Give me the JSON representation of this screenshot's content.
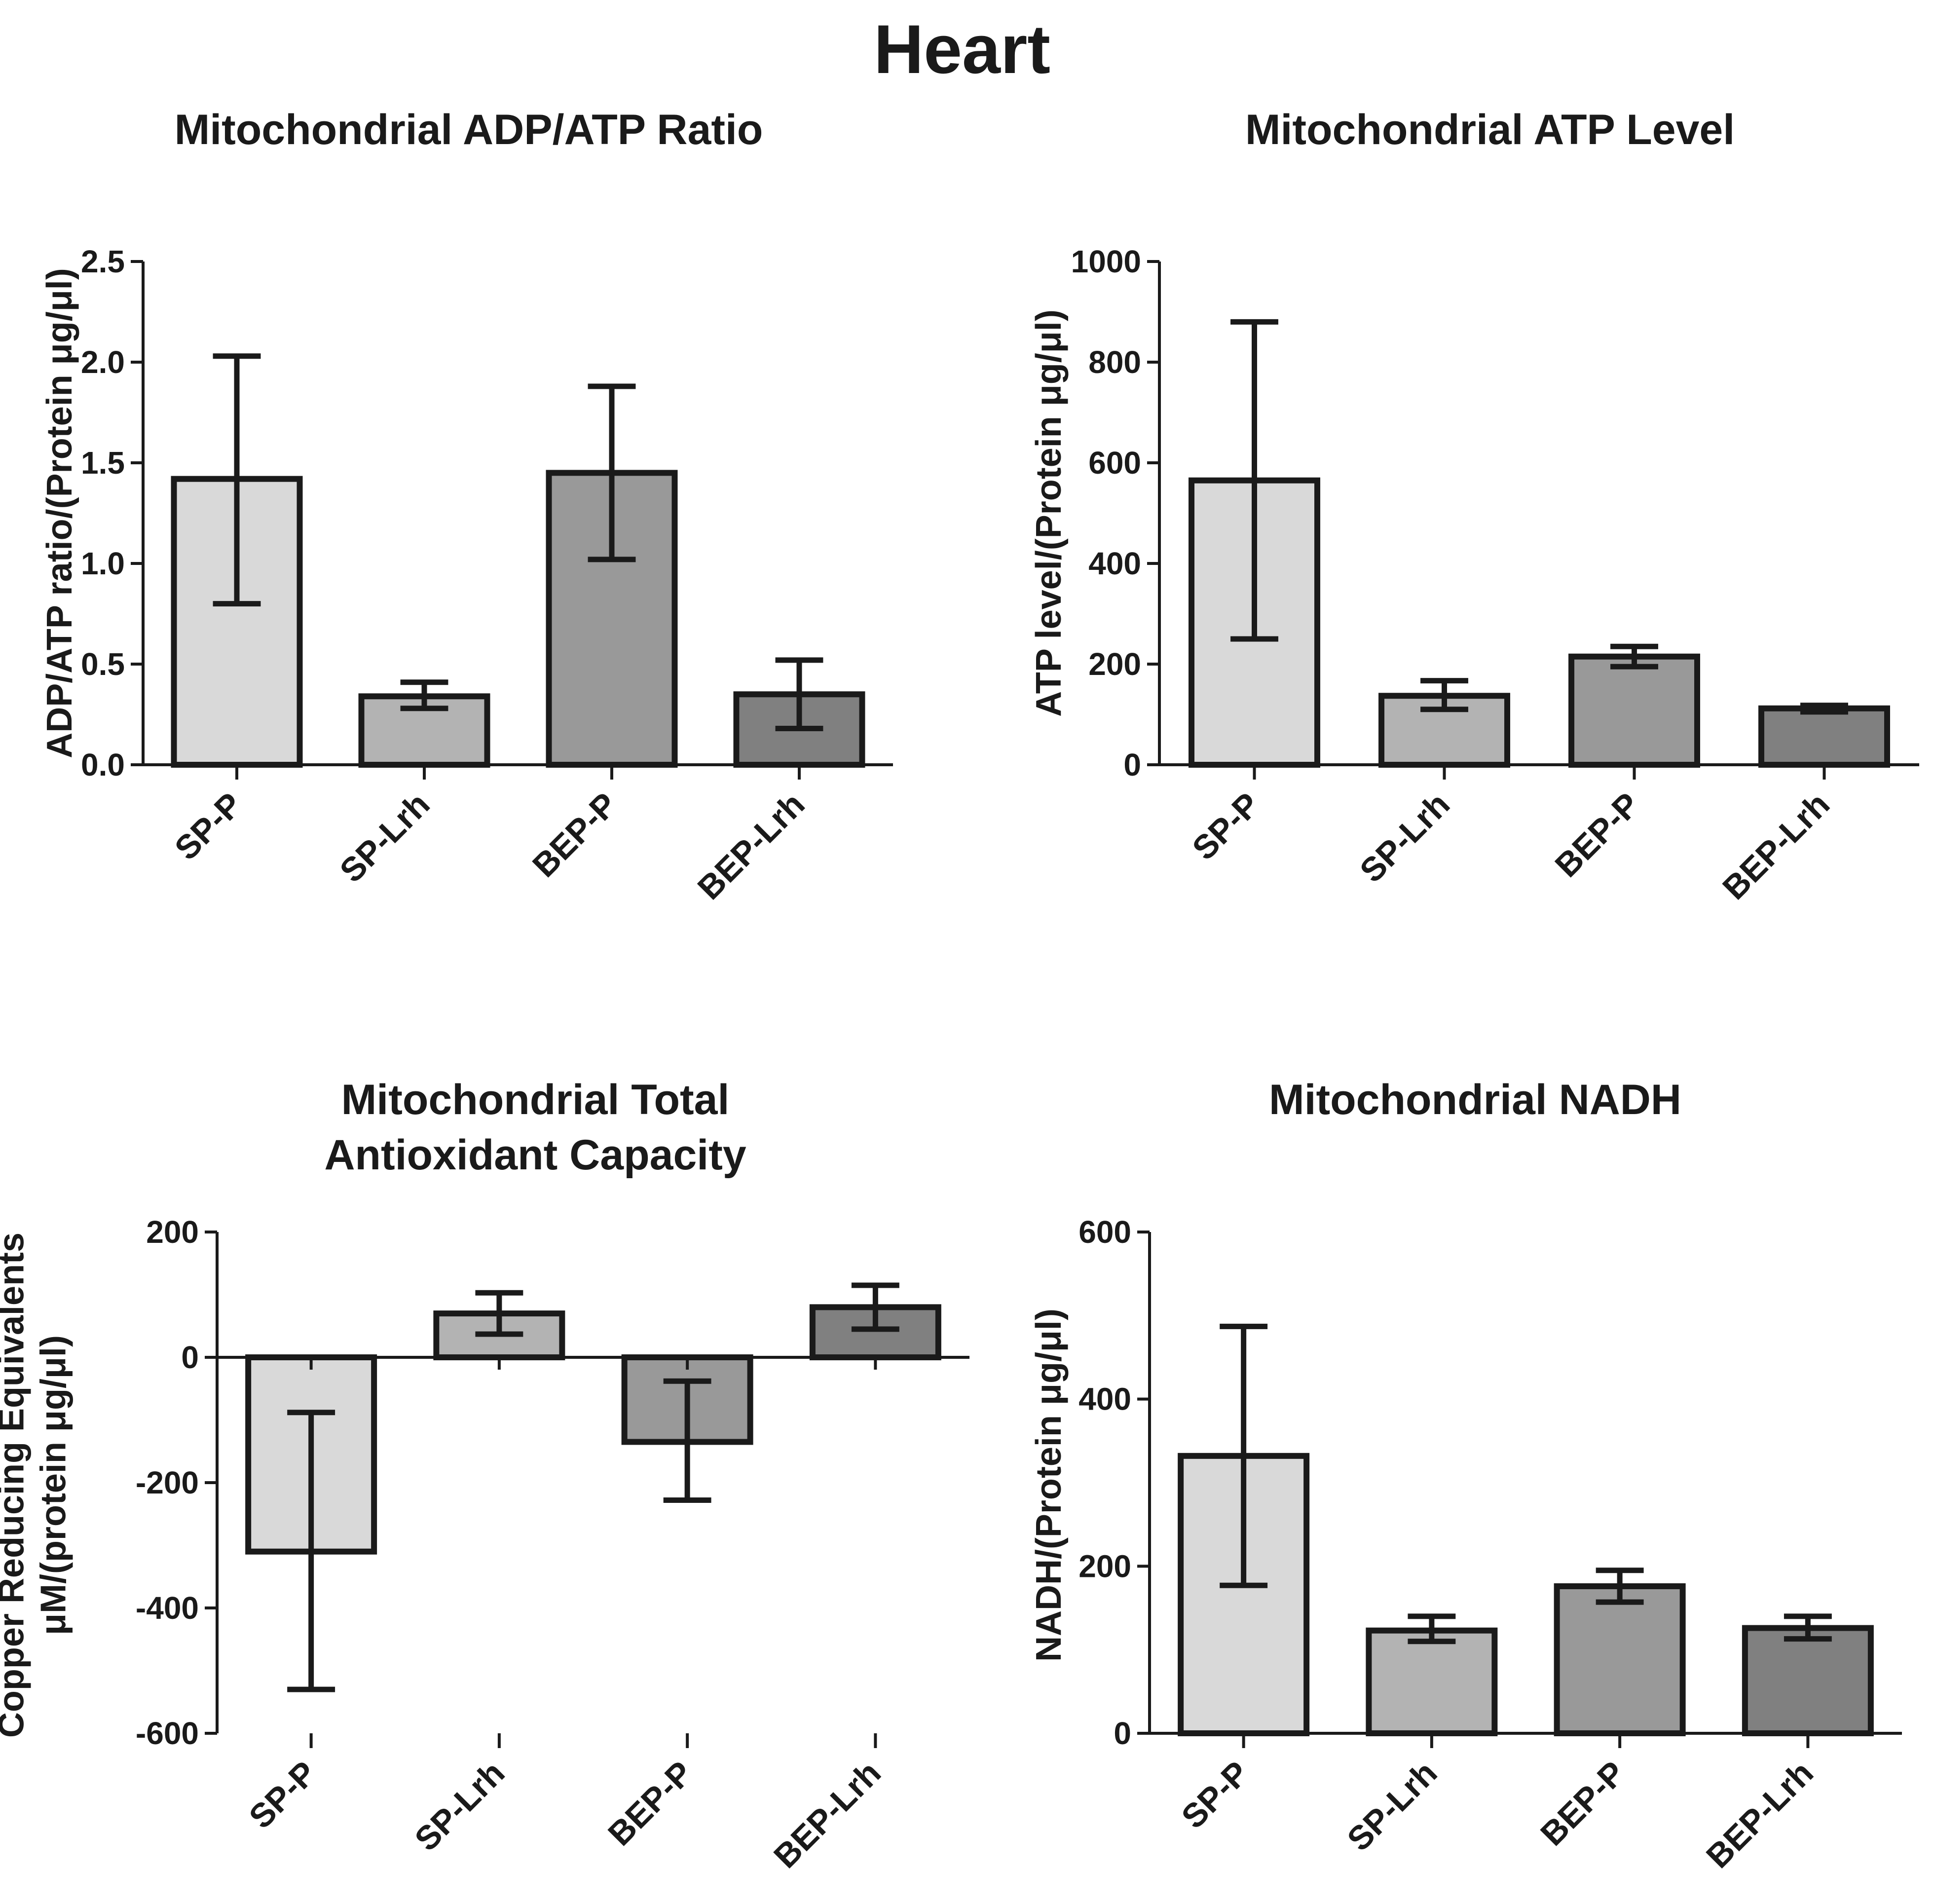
{
  "figure_title": "Heart",
  "chart_data": [
    {
      "type": "bar",
      "title": [
        "Mitochondrial ADP/ATP Ratio"
      ],
      "ylabel": [
        "ADP/ATP ratio/(Protein  μg/μl)"
      ],
      "categories": [
        "SP-P",
        "SP-Lrh",
        "BEP-P",
        "BEP-Lrh"
      ],
      "values": [
        1.42,
        0.34,
        1.45,
        0.35
      ],
      "error_low": [
        0.8,
        0.28,
        1.02,
        0.18
      ],
      "error_high": [
        2.03,
        0.41,
        1.88,
        0.52
      ],
      "colors": [
        "#d9d9d9",
        "#b3b3b3",
        "#999999",
        "#808080"
      ],
      "ylim": [
        0,
        2.5
      ],
      "yticks": [
        0,
        0.5,
        1.0,
        1.5,
        2.0,
        2.5
      ],
      "ytick_labels": [
        "0.0",
        "0.5",
        "1.0",
        "1.5",
        "2.0",
        "2.5"
      ]
    },
    {
      "type": "bar",
      "title": [
        "Mitochondrial ATP Level"
      ],
      "ylabel": [
        "ATP level/(Protein  μg/μl)"
      ],
      "categories": [
        "SP-P",
        "SP-Lrh",
        "BEP-P",
        "BEP-Lrh"
      ],
      "values": [
        565,
        137,
        215,
        112
      ],
      "error_low": [
        250,
        110,
        195,
        105
      ],
      "error_high": [
        880,
        167,
        235,
        118
      ],
      "colors": [
        "#d9d9d9",
        "#b3b3b3",
        "#999999",
        "#808080"
      ],
      "ylim": [
        0,
        1000
      ],
      "yticks": [
        0,
        200,
        400,
        600,
        800,
        1000
      ],
      "ytick_labels": [
        "0",
        "200",
        "400",
        "600",
        "800",
        "1000"
      ]
    },
    {
      "type": "bar",
      "title": [
        "Mitochondrial Total",
        "Antioxidant Capacity"
      ],
      "ylabel": [
        "Copper Reducing Equivalents",
        "μM/(protein  μg/μl)"
      ],
      "categories": [
        "SP-P",
        "SP-Lrh",
        "BEP-P",
        "BEP-Lrh"
      ],
      "values": [
        -310,
        70,
        -135,
        80
      ],
      "error_low": [
        -530,
        37,
        -228,
        45
      ],
      "error_high": [
        -88,
        103,
        -38,
        115
      ],
      "colors": [
        "#d9d9d9",
        "#b3b3b3",
        "#999999",
        "#808080"
      ],
      "ylim": [
        -600,
        200
      ],
      "yticks": [
        -600,
        -400,
        -200,
        0,
        200
      ],
      "ytick_labels": [
        "-600",
        "-400",
        "-200",
        "0",
        "200"
      ]
    },
    {
      "type": "bar",
      "title": [
        "Mitochondrial NADH"
      ],
      "ylabel": [
        "NADH/(Protein  μg/μl)"
      ],
      "categories": [
        "SP-P",
        "SP-Lrh",
        "BEP-P",
        "BEP-Lrh"
      ],
      "values": [
        332,
        123,
        176,
        126
      ],
      "error_low": [
        177,
        110,
        157,
        113
      ],
      "error_high": [
        487,
        140,
        195,
        140
      ],
      "colors": [
        "#d9d9d9",
        "#b3b3b3",
        "#999999",
        "#808080"
      ],
      "ylim": [
        0,
        600
      ],
      "yticks": [
        0,
        200,
        400,
        600
      ],
      "ytick_labels": [
        "0",
        "200",
        "400",
        "600"
      ]
    }
  ]
}
